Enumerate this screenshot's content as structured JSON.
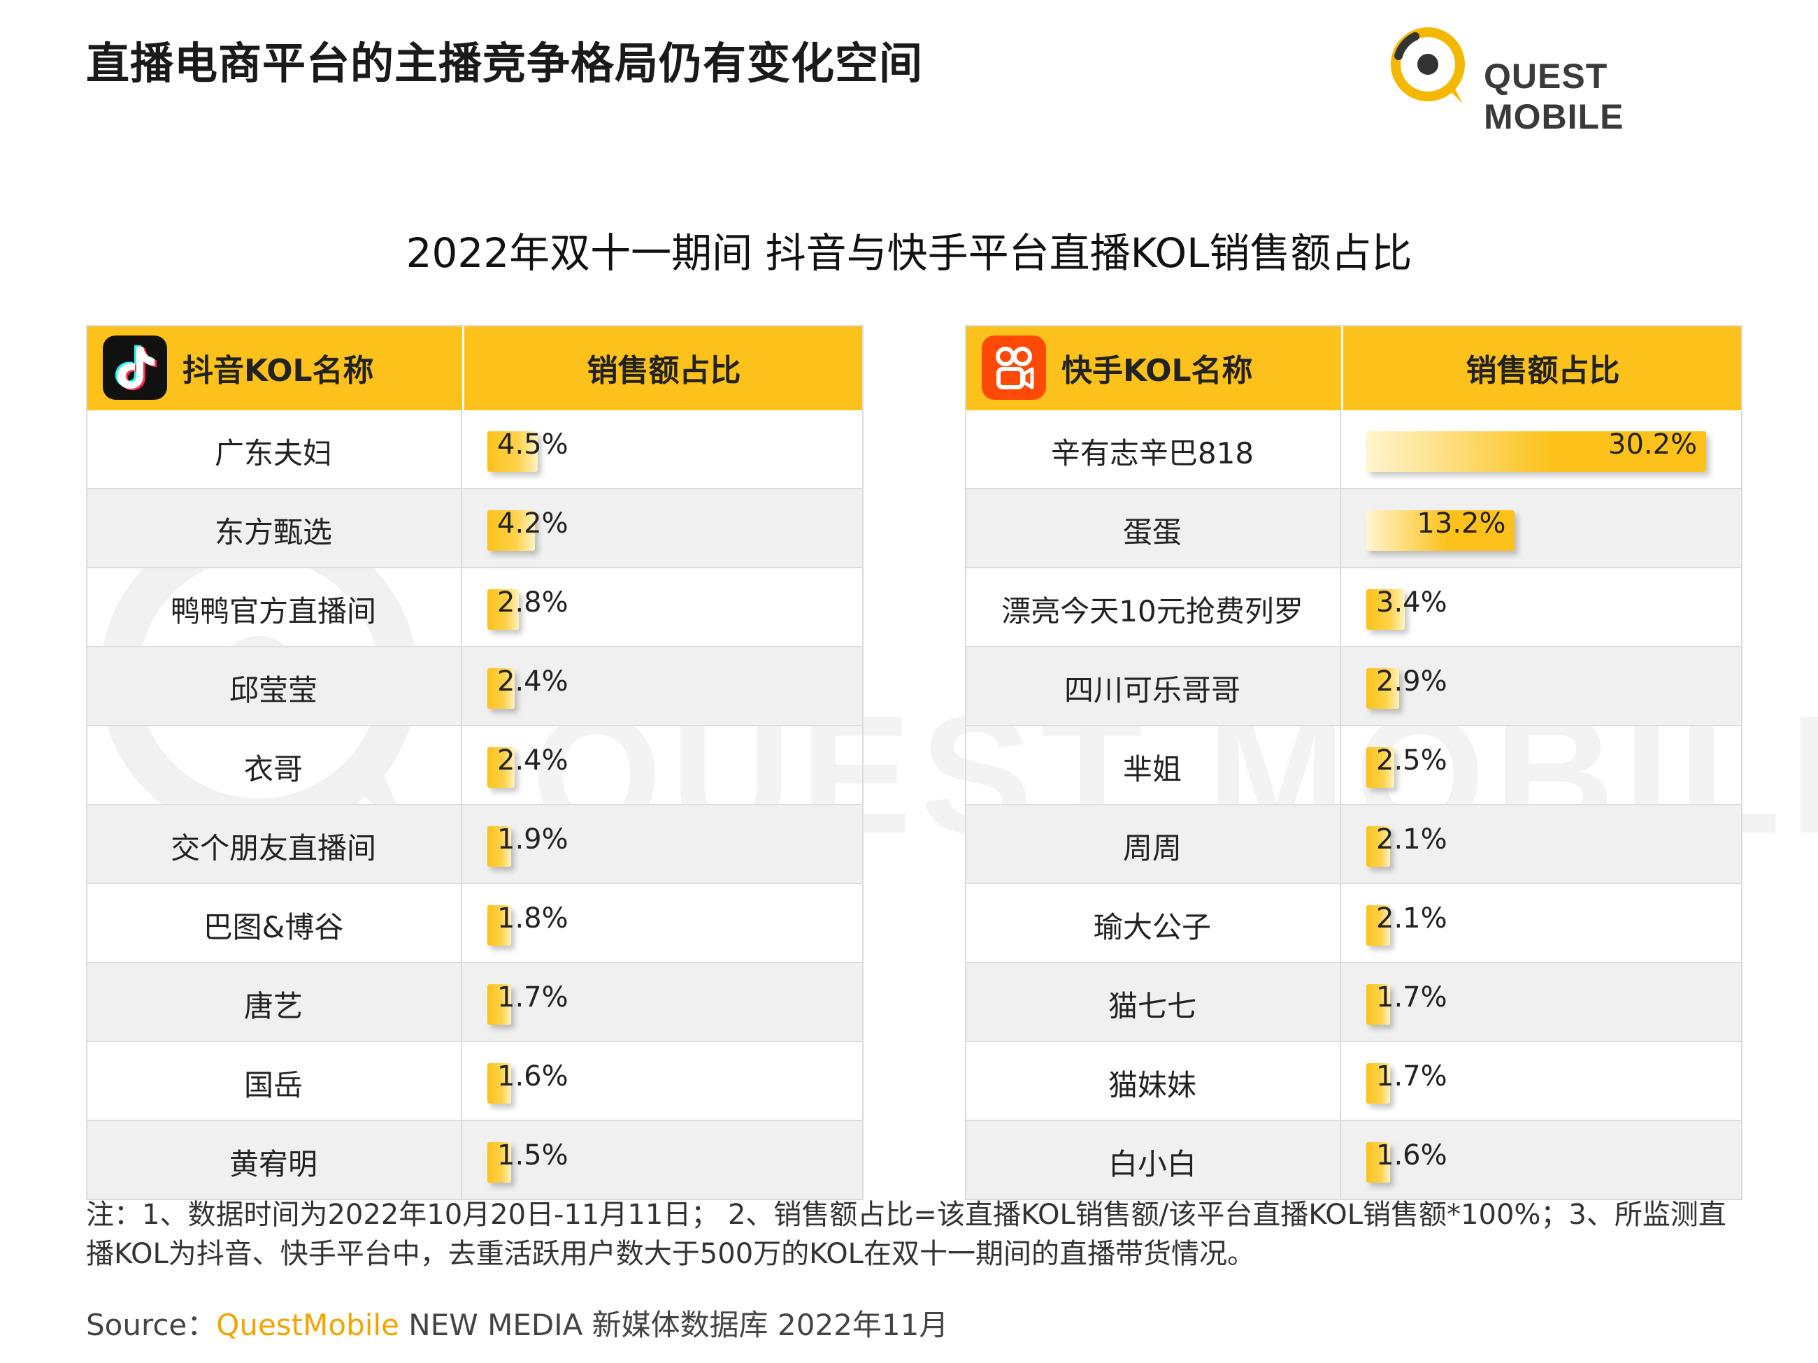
{
  "page": {
    "title": "直播电商平台的主播竞争格局仍有变化空间",
    "brand": "QUEST MOBILE",
    "colors": {
      "accent": "#fcc21b",
      "brand_ring": "#f5b800",
      "text": "#222222"
    }
  },
  "chart_data": [
    {
      "type": "bar",
      "title": "2022年双十一期间 抖音与快手平台直播KOL销售额占比",
      "platform": "抖音",
      "icon": "douyin-icon",
      "header": {
        "name_col": "抖音KOL名称",
        "value_col": "销售额占比"
      },
      "categories": [
        "广东夫妇",
        "东方甄选",
        "鸭鸭官方直播间",
        "邱莹莹",
        "衣哥",
        "交个朋友直播间",
        "巴图&博谷",
        "唐艺",
        "国岳",
        "黄宥明"
      ],
      "values": [
        4.5,
        4.2,
        2.8,
        2.4,
        2.4,
        1.9,
        1.8,
        1.7,
        1.6,
        1.5
      ],
      "labels": [
        "4.5%",
        "4.2%",
        "2.8%",
        "2.4%",
        "2.4%",
        "1.9%",
        "1.8%",
        "1.7%",
        "1.6%",
        "1.5%"
      ],
      "unit": "%"
    },
    {
      "type": "bar",
      "platform": "快手",
      "icon": "kuaishou-icon",
      "header": {
        "name_col": "快手KOL名称",
        "value_col": "销售额占比"
      },
      "categories": [
        "辛有志辛巴818",
        "蛋蛋",
        "漂亮今天10元抢费列罗",
        "四川可乐哥哥",
        "芈姐",
        "周周",
        "瑜大公子",
        "猫七七",
        "猫妹妹",
        "白小白"
      ],
      "values": [
        30.2,
        13.2,
        3.4,
        2.9,
        2.5,
        2.1,
        2.1,
        1.7,
        1.7,
        1.6
      ],
      "labels": [
        "30.2%",
        "13.2%",
        "3.4%",
        "2.9%",
        "2.5%",
        "2.1%",
        "2.1%",
        "1.7%",
        "1.7%",
        "1.6%"
      ],
      "unit": "%"
    }
  ],
  "note": "注：1、数据时间为2022年10月20日-11月11日； 2、销售额占比=该直播KOL销售额/该平台直播KOL销售额*100%；3、所监测直播KOL为抖音、快手平台中，去重活跃用户数大于500万的KOL在双十一期间的直播带货情况。",
  "source": {
    "prefix": "Source：",
    "brand": "QuestMobile",
    "rest": " NEW MEDIA 新媒体数据库 2022年11月"
  },
  "watermark": "QUEST MOBILE"
}
